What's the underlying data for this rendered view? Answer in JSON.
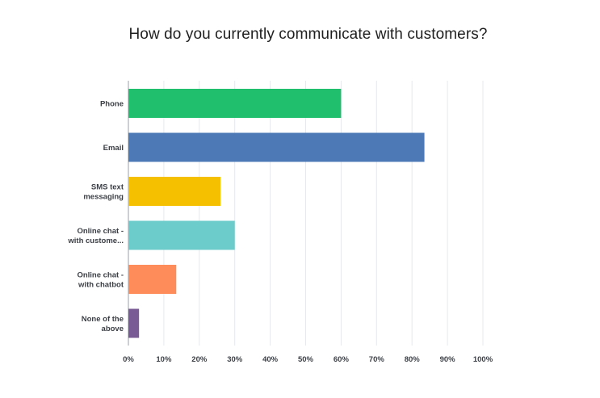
{
  "chart_data": {
    "type": "bar",
    "orientation": "horizontal",
    "title": "How do you currently communicate with customers?",
    "categories": [
      [
        "Phone"
      ],
      [
        "Email"
      ],
      [
        "SMS text",
        "messaging"
      ],
      [
        "Online chat -",
        "with custome..."
      ],
      [
        "Online chat -",
        "with chatbot"
      ],
      [
        "None of the",
        "above"
      ]
    ],
    "values": [
      60,
      83.5,
      26,
      30,
      13.5,
      3
    ],
    "colors": [
      "#1fbf6d",
      "#4e79b7",
      "#f5c000",
      "#6ccbcb",
      "#fd8c5a",
      "#7a5a95"
    ],
    "xlim": [
      0,
      100
    ],
    "xticks": [
      "0%",
      "10%",
      "20%",
      "30%",
      "40%",
      "50%",
      "60%",
      "70%",
      "80%",
      "90%",
      "100%"
    ],
    "grid": true,
    "xlabel": "",
    "ylabel": ""
  }
}
